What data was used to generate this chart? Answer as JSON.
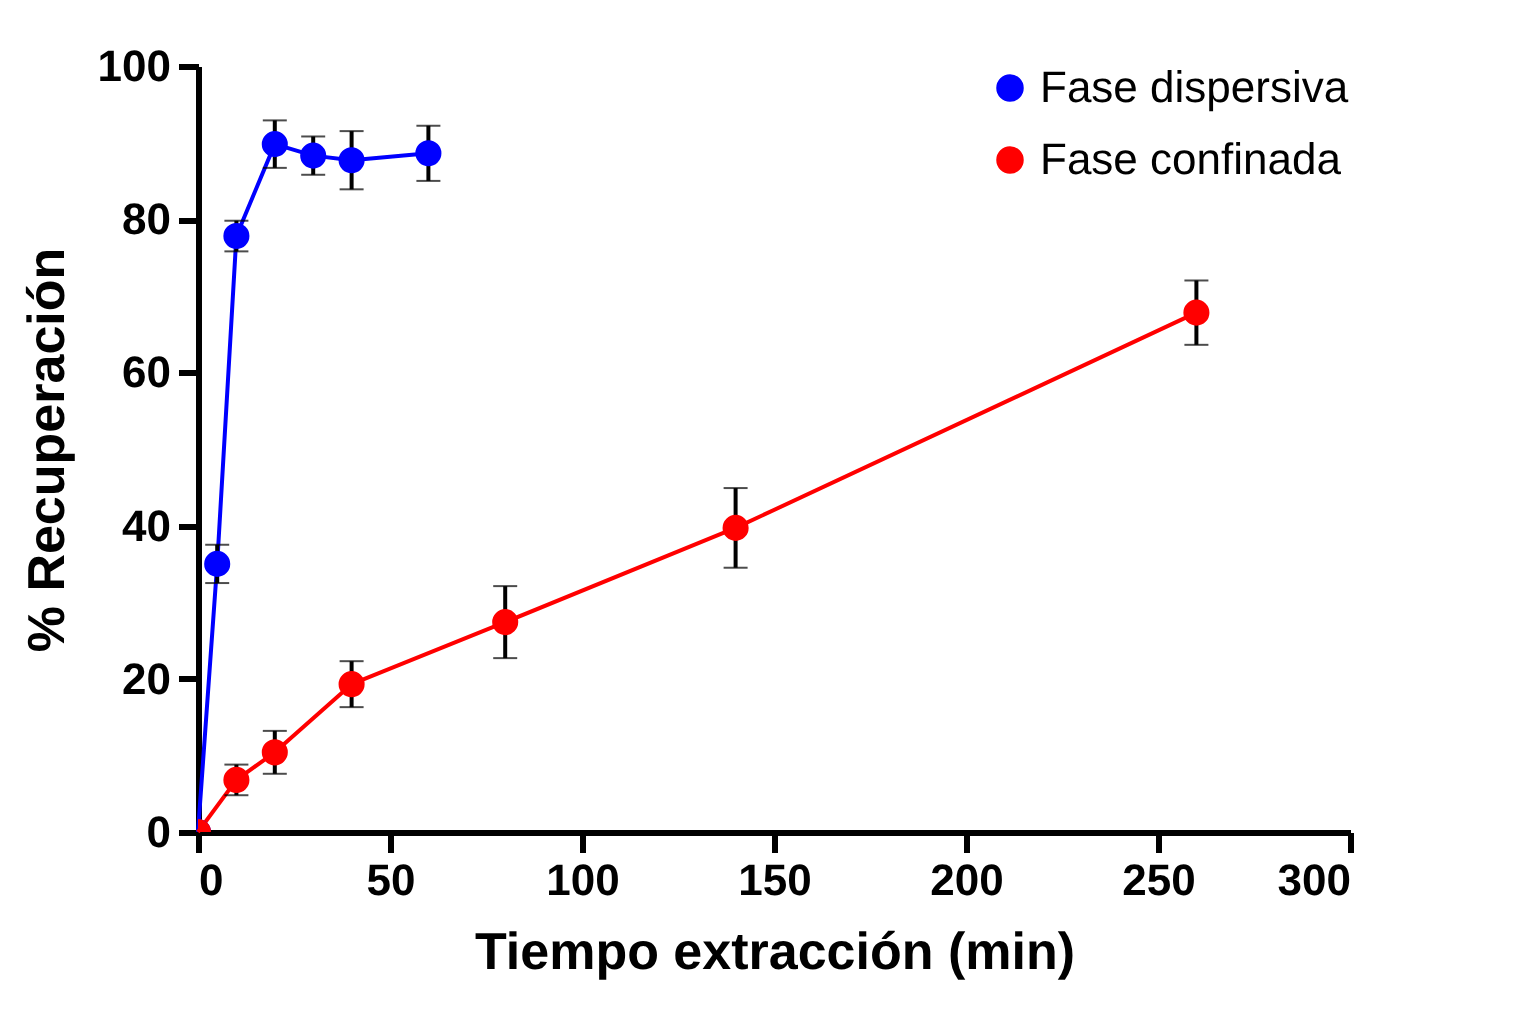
{
  "chart_data": {
    "type": "line",
    "xlabel": "Tiempo extracción (min)",
    "ylabel": "% Recuperación",
    "xlim": [
      0,
      300
    ],
    "xticks": [
      0,
      50,
      100,
      150,
      200,
      250,
      300
    ],
    "ylim": [
      0,
      100
    ],
    "yticks": [
      0,
      20,
      40,
      60,
      80,
      100
    ],
    "grid": false,
    "legend": "top right",
    "marker": "circle",
    "line_style": "solid",
    "series": [
      {
        "name": "Fase dispersiva",
        "color": "#0000ff",
        "x": [
          0,
          5,
          10,
          20,
          30,
          40,
          60
        ],
        "values": [
          0,
          35,
          77.8,
          89.8,
          88.3,
          87.7,
          88.6
        ],
        "errors": [
          null,
          2.5,
          2,
          3.1,
          2.5,
          3.8,
          3.6
        ]
      },
      {
        "name": "Fase confinada",
        "color": "#ff0000",
        "x": [
          0,
          10,
          20,
          40,
          80,
          140,
          260
        ],
        "values": [
          0,
          6.8,
          10.4,
          19.3,
          27.4,
          39.7,
          67.8
        ],
        "errors": [
          null,
          2,
          2.8,
          3,
          4.7,
          5.2,
          4.2
        ]
      }
    ]
  }
}
